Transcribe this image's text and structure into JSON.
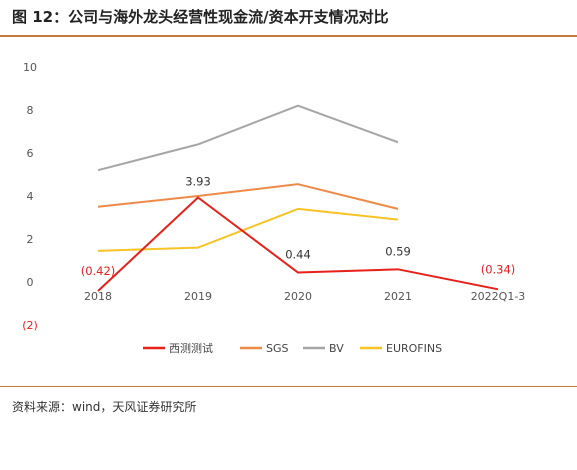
{
  "figure": {
    "title": "图 12：公司与海外龙头经营性现金流/资本开支情况对比",
    "source": "资料来源：wind，天风证券研究所",
    "accent_color": "#c47a3a"
  },
  "chart_data": {
    "type": "line",
    "categories": [
      "2018",
      "2019",
      "2020",
      "2021",
      "2022Q1-3"
    ],
    "ylim": [
      -2,
      10
    ],
    "yticks": [
      0,
      2,
      4,
      6,
      8,
      10
    ],
    "extra_tick": {
      "value": -2,
      "label": "(2)"
    },
    "grid": false,
    "legend_position": "bottom",
    "series": [
      {
        "name": "西测测试",
        "color": "#e8201a",
        "values": [
          -0.42,
          3.93,
          0.44,
          0.59,
          -0.34
        ],
        "labels": [
          "(0.42)",
          "3.93",
          "0.44",
          "0.59",
          "(0.34)"
        ],
        "label_colors": [
          "#e8201a",
          "#333333",
          "#333333",
          "#333333",
          "#e8201a"
        ]
      },
      {
        "name": "SGS",
        "color": "#ee8a48",
        "values": [
          3.5,
          4.0,
          4.55,
          3.4,
          null
        ]
      },
      {
        "name": "BV",
        "color": "#a6a6a6",
        "values": [
          5.2,
          6.4,
          8.2,
          6.5,
          null
        ]
      },
      {
        "name": "EUROFINS",
        "color": "#f7c325",
        "values": [
          1.45,
          1.6,
          3.4,
          2.9,
          null
        ]
      }
    ]
  }
}
